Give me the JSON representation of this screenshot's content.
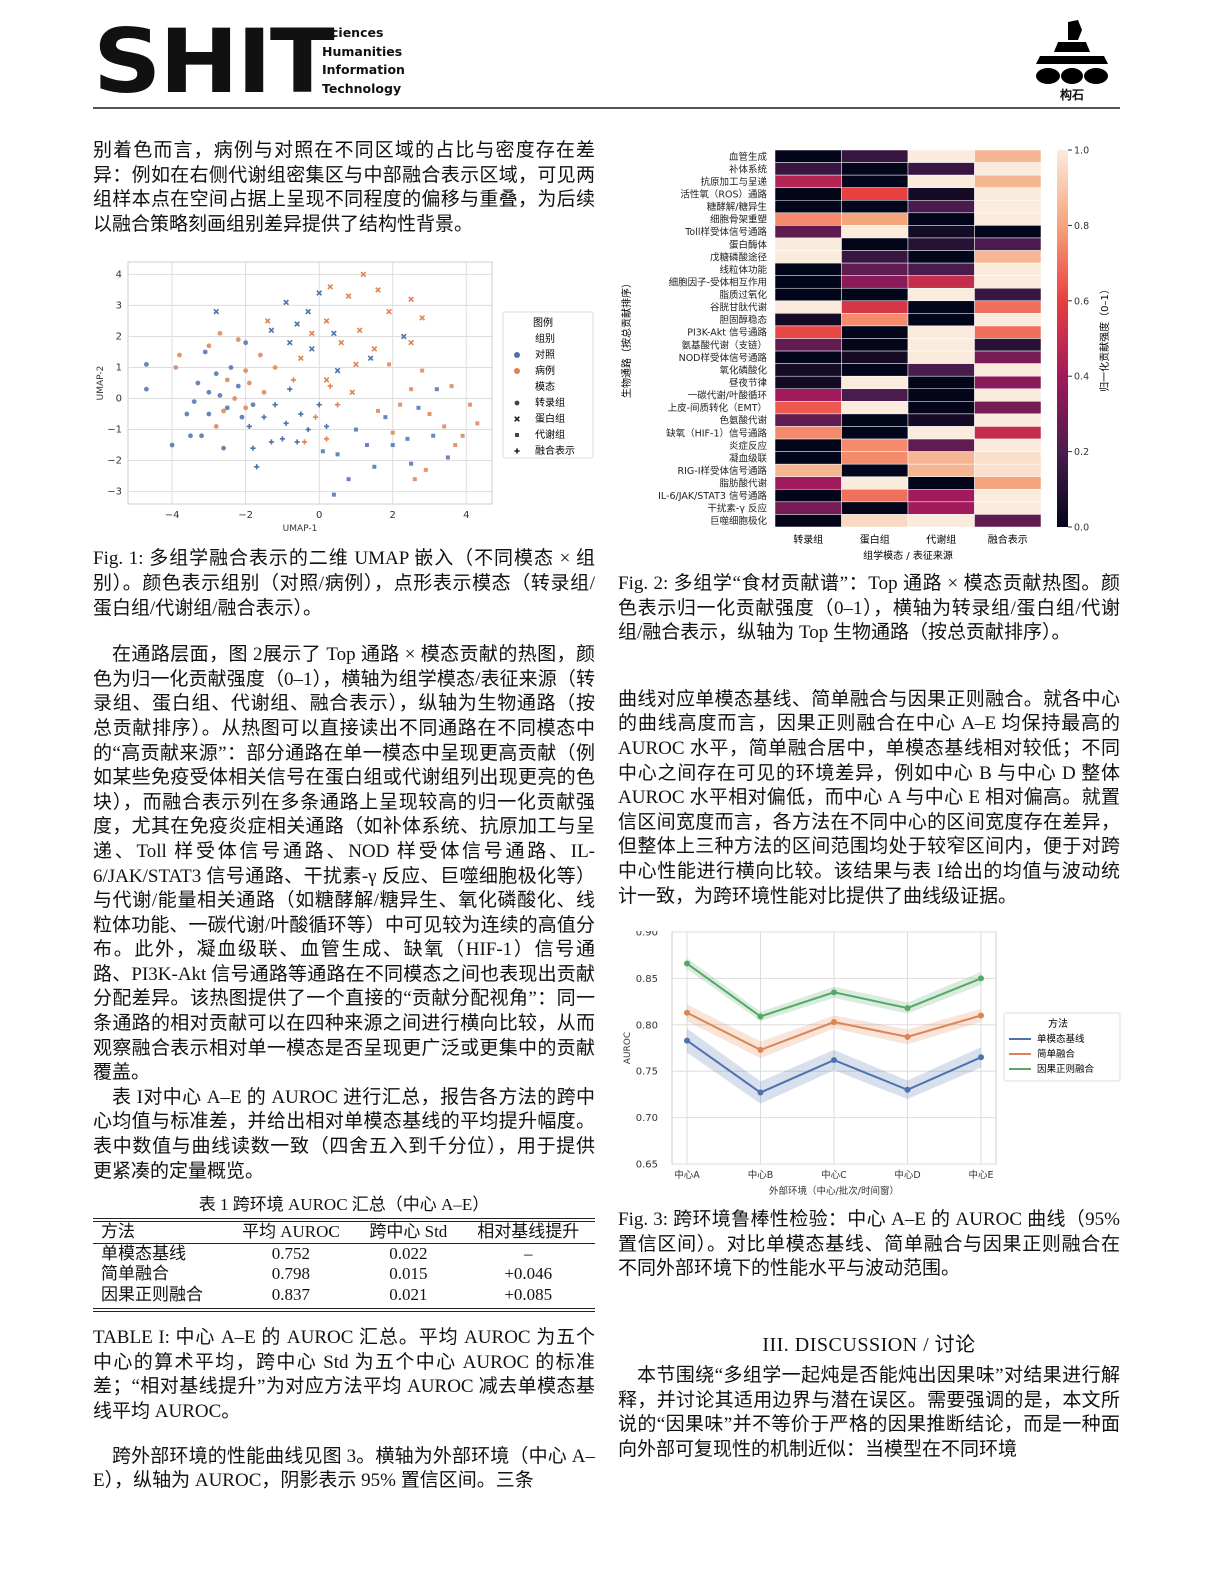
{
  "header": {
    "logo_text": "SHIT",
    "logo_words": [
      "Sciences",
      "Humanities",
      "Information",
      "Technology"
    ],
    "right_logo_caption": "构石"
  },
  "left": {
    "para1": "别着色而言，病例与对照在不同区域的占比与密度存在差异：例如在右侧代谢组密集区与中部融合表示区域，可见两组样本点在空间占据上呈现不同程度的偏移与重叠，为后续以融合策略刻画组别差异提供了结构性背景。",
    "fig1_caption": "Fig. 1: 多组学融合表示的二维 UMAP 嵌入（不同模态 × 组别）。颜色表示组别（对照/病例），点形表示模态（转录组/蛋白组/代谢组/融合表示）。",
    "para2": "在通路层面，图 2展示了 Top 通路 × 模态贡献的热图，颜色为归一化贡献强度（0–1），横轴为组学模态/表征来源（转录组、蛋白组、代谢组、融合表示），纵轴为生物通路（按总贡献排序）。从热图可以直接读出不同通路在不同模态中的“高贡献来源”：部分通路在单一模态中呈现更高贡献（例如某些免疫受体相关信号在蛋白组或代谢组列出现更亮的色块），而融合表示列在多条通路上呈现较高的归一化贡献强度，尤其在免疫炎症相关通路（如补体系统、抗原加工与呈递、Toll 样受体信号通路、NOD 样受体信号通路、IL-6/JAK/STAT3 信号通路、干扰素-γ 反应、巨噬细胞极化等）与代谢/能量相关通路（如糖酵解/糖异生、氧化磷酸化、线粒体功能、一碳代谢/叶酸循环等）中可见较为连续的高值分布。此外，凝血级联、血管生成、缺氧（HIF-1）信号通路、PI3K-Akt 信号通路等通路在不同模态之间也表现出贡献分配差异。该热图提供了一个直接的“贡献分配视角”：同一条通路的相对贡献可以在四种来源之间进行横向比较，从而观察融合表示相对单一模态是否呈现更广泛或更集中的贡献覆盖。",
    "para3": "表 I对中心 A–E 的 AUROC 进行汇总，报告各方法的跨中心均值与标准差，并给出相对单模态基线的平均提升幅度。表中数值与曲线读数一致（四舍五入到千分位），用于提供更紧凑的定量概览。",
    "table_caption": "TABLE I: 中心 A–E 的 AUROC 汇总。平均 AUROC 为五个中心的算术平均，跨中心 Std 为五个中心 AUROC 的标准差；“相对基线提升”为对应方法平均 AUROC 减去单模态基线平均 AUROC。",
    "para4": "跨外部环境的性能曲线见图 3。横轴为外部环境（中心 A–E），纵轴为 AUROC，阴影表示 95% 置信区间。三条"
  },
  "table": {
    "title": "表 1  跨环境 AUROC 汇总（中心 A–E）",
    "headers": [
      "方法",
      "平均 AUROC",
      "跨中心 Std",
      "相对基线提升"
    ],
    "rows": [
      [
        "单模态基线",
        "0.752",
        "0.022",
        "–"
      ],
      [
        "简单融合",
        "0.798",
        "0.015",
        "+0.046"
      ],
      [
        "因果正则融合",
        "0.837",
        "0.021",
        "+0.085"
      ]
    ],
    "bold_row": 2
  },
  "right": {
    "fig2_caption": "Fig. 2: 多组学“食材贡献谱”：Top 通路 × 模态贡献热图。颜色表示归一化贡献强度（0–1），横轴为转录组/蛋白组/代谢组/融合表示，纵轴为 Top 生物通路（按总贡献排序）。",
    "para1": "曲线对应单模态基线、简单融合与因果正则融合。就各中心的曲线高度而言，因果正则融合在中心 A–E 均保持最高的 AUROC 水平，简单融合居中，单模态基线相对较低；不同中心之间存在可见的环境差异，例如中心 B 与中心 D 整体 AUROC 水平相对偏低，而中心 A 与中心 E 相对偏高。就置信区间宽度而言，各方法在不同中心的区间宽度存在差异，但整体上三种方法的区间范围均处于较窄区间内，便于对跨中心性能进行横向比较。该结果与表 I给出的均值与波动统计一致，为跨环境性能对比提供了曲线级证据。",
    "fig3_caption": "Fig. 3: 跨环境鲁棒性检验：中心 A–E 的 AUROC 曲线（95% 置信区间）。对比单模态基线、简单融合与因果正则融合在不同外部环境下的性能水平与波动范围。",
    "section_heading": "III. DISCUSSION / 讨论",
    "para2": "本节围绕“多组学一起炖是否能炖出因果味”对结果进行解释，并讨论其适用边界与潜在误区。需要强调的是，本文所说的“因果味”并不等价于严格的因果推断结论，而是一种面向外部可复现性的机制近似：当模型在不同环境"
  },
  "chart_data": [
    {
      "type": "scatter",
      "xlabel": "UMAP-1",
      "ylabel": "UMAP-2",
      "xlim": [
        -5.2,
        4.7
      ],
      "ylim": [
        -3.4,
        4.4
      ],
      "xticks": [
        -4,
        -2,
        0,
        2,
        4
      ],
      "yticks": [
        -3,
        -2,
        -1,
        0,
        1,
        2,
        3,
        4
      ],
      "grid": true,
      "legend_placement": "right",
      "legend": {
        "title": "图例",
        "group_title": "组别",
        "groups": [
          "对照",
          "病例"
        ],
        "modality_title": "模态",
        "modalities": [
          "转录组",
          "蛋白组",
          "代谢组",
          "融合表示"
        ]
      },
      "colors": {
        "对照": "#4c72b0",
        "病例": "#dd8452"
      },
      "point_fields": [
        "x",
        "y",
        "group_index",
        "modality_index"
      ],
      "points": [
        [
          -4.7,
          1.1,
          0,
          0
        ],
        [
          -4.7,
          0.3,
          0,
          0
        ],
        [
          -4,
          -1.5,
          0,
          0
        ],
        [
          -3.5,
          -1.2,
          0,
          0
        ],
        [
          -3.2,
          -1.2,
          0,
          0
        ],
        [
          -2.6,
          -1.6,
          0,
          0
        ],
        [
          -3.3,
          0.5,
          0,
          0
        ],
        [
          -3,
          0.2,
          0,
          0
        ],
        [
          -2.8,
          0.8,
          0,
          0
        ],
        [
          -3.4,
          -0.1,
          0,
          0
        ],
        [
          -2.5,
          -0.3,
          0,
          0
        ],
        [
          -2.2,
          0.4,
          0,
          0
        ],
        [
          -3.1,
          1.5,
          0,
          0
        ],
        [
          -2,
          1.8,
          0,
          0
        ],
        [
          -3.6,
          -0.5,
          0,
          0
        ],
        [
          -2.7,
          0.1,
          0,
          0
        ],
        [
          -1.8,
          -0.2,
          0,
          0
        ],
        [
          -2.4,
          1.0,
          0,
          0
        ],
        [
          -3.0,
          -0.5,
          0,
          0
        ],
        [
          -2.1,
          -0.6,
          0,
          0
        ],
        [
          -3.8,
          1.4,
          1,
          0
        ],
        [
          -2.7,
          2.1,
          1,
          0
        ],
        [
          -3.0,
          1.7,
          1,
          0
        ],
        [
          -2.2,
          1.9,
          1,
          0
        ],
        [
          -2.5,
          0.6,
          1,
          0
        ],
        [
          -2,
          0.9,
          1,
          0
        ],
        [
          -1.6,
          1.4,
          1,
          0
        ],
        [
          -2.3,
          0,
          1,
          0
        ],
        [
          -1.9,
          0.5,
          1,
          0
        ],
        [
          -2.8,
          -0.9,
          1,
          0
        ],
        [
          -1.5,
          0.2,
          1,
          0
        ],
        [
          -2.6,
          -0.4,
          1,
          0
        ],
        [
          -3.9,
          1.0,
          1,
          0
        ],
        [
          -1.2,
          1.0,
          1,
          0
        ],
        [
          -2.0,
          -0.3,
          1,
          0
        ],
        [
          1.2,
          4,
          1,
          1
        ],
        [
          0.3,
          3.6,
          1,
          1
        ],
        [
          1.6,
          3.5,
          1,
          1
        ],
        [
          0.8,
          3.3,
          1,
          1
        ],
        [
          2.5,
          3.2,
          1,
          1
        ],
        [
          1.9,
          2.8,
          1,
          1
        ],
        [
          0.2,
          2.5,
          1,
          1
        ],
        [
          1.1,
          2.2,
          1,
          1
        ],
        [
          2.8,
          2.6,
          1,
          1
        ],
        [
          -0.2,
          2.1,
          1,
          1
        ],
        [
          0.6,
          1.8,
          1,
          1
        ],
        [
          1.5,
          1.6,
          1,
          1
        ],
        [
          -1.4,
          2.5,
          1,
          1
        ],
        [
          2.5,
          1.8,
          1,
          1
        ],
        [
          1.0,
          1.1,
          1,
          1
        ],
        [
          0.2,
          0.6,
          1,
          1
        ],
        [
          -0.5,
          1.3,
          1,
          1
        ],
        [
          0.9,
          0.2,
          1,
          1
        ],
        [
          -2.8,
          2.8,
          0,
          1
        ],
        [
          -0.9,
          3.1,
          0,
          1
        ],
        [
          -0.3,
          2.8,
          0,
          1
        ],
        [
          0.0,
          3.4,
          0,
          1
        ],
        [
          -0.6,
          2.4,
          0,
          1
        ],
        [
          0.4,
          2.1,
          0,
          1
        ],
        [
          -1.3,
          2.2,
          0,
          1
        ],
        [
          -0.2,
          1.6,
          0,
          1
        ],
        [
          2.3,
          2.0,
          0,
          1
        ],
        [
          1.4,
          1.3,
          0,
          1
        ],
        [
          0.5,
          0.9,
          0,
          1
        ],
        [
          -0.8,
          1.8,
          0,
          1
        ],
        [
          0.4,
          -3.1,
          0,
          2
        ],
        [
          0.8,
          -2.6,
          0,
          2
        ],
        [
          1.5,
          -2.2,
          0,
          2
        ],
        [
          2.0,
          -1.5,
          0,
          2
        ],
        [
          2.5,
          -2.1,
          0,
          2
        ],
        [
          3.5,
          -1.9,
          0,
          2
        ],
        [
          1.0,
          -1.0,
          0,
          2
        ],
        [
          1.8,
          -0.6,
          0,
          2
        ],
        [
          2.4,
          -1.3,
          0,
          2
        ],
        [
          3.1,
          -1.2,
          0,
          2
        ],
        [
          0.5,
          -1.8,
          0,
          2
        ],
        [
          1.3,
          -1.5,
          0,
          2
        ],
        [
          2.7,
          -0.3,
          0,
          2
        ],
        [
          3.2,
          0.3,
          0,
          2
        ],
        [
          0.1,
          -1.7,
          0,
          2
        ],
        [
          2.6,
          -2.6,
          1,
          2
        ],
        [
          2.9,
          -2.3,
          1,
          2
        ],
        [
          3.9,
          -1.2,
          1,
          2
        ],
        [
          4.3,
          -0.8,
          1,
          2
        ],
        [
          3.6,
          0.4,
          1,
          2
        ],
        [
          2.8,
          0.9,
          1,
          2
        ],
        [
          2.2,
          -0.2,
          1,
          2
        ],
        [
          3.0,
          -0.5,
          1,
          2
        ],
        [
          2.5,
          0.3,
          1,
          2
        ],
        [
          1.9,
          1.1,
          1,
          2
        ],
        [
          4.1,
          -0.2,
          1,
          2
        ],
        [
          3.4,
          -0.9,
          1,
          2
        ],
        [
          2.0,
          -1.1,
          1,
          2
        ],
        [
          3.7,
          -1.5,
          1,
          2
        ],
        [
          1.6,
          -0.4,
          1,
          2
        ],
        [
          -1.7,
          -2.2,
          0,
          3
        ],
        [
          -1.8,
          -1.6,
          0,
          3
        ],
        [
          -1.3,
          -1.4,
          0,
          3
        ],
        [
          -1.0,
          -1.3,
          0,
          3
        ],
        [
          -0.6,
          -1.4,
          0,
          3
        ],
        [
          -1.5,
          -0.6,
          0,
          3
        ],
        [
          -0.9,
          -0.8,
          0,
          3
        ],
        [
          -0.3,
          -1.0,
          0,
          3
        ],
        [
          -1.2,
          -0.2,
          0,
          3
        ],
        [
          -0.5,
          -0.5,
          0,
          3
        ],
        [
          0.2,
          -0.9,
          0,
          3
        ],
        [
          -0.8,
          0.3,
          0,
          3
        ],
        [
          -1.9,
          -0.9,
          0,
          3
        ],
        [
          0.0,
          -0.2,
          0,
          3
        ],
        [
          -0.4,
          -1.4,
          1,
          3
        ],
        [
          0.2,
          -1.3,
          1,
          3
        ],
        [
          -0.1,
          -0.6,
          1,
          3
        ],
        [
          0.5,
          -0.2,
          1,
          3
        ],
        [
          -0.7,
          0.6,
          1,
          3
        ],
        [
          0.3,
          0.4,
          1,
          3
        ]
      ]
    },
    {
      "type": "heatmap",
      "xlabel": "组学模态 / 表征来源",
      "ylabel": "生物通路（按总贡献排序）",
      "colorbar_label": "归一化贡献强度（0–1）",
      "columns": [
        "转录组",
        "蛋白组",
        "代谢组",
        "融合表示"
      ],
      "colorbar_ticks": [
        "0.0",
        "0.2",
        "0.4",
        "0.6",
        "0.8",
        "1.0"
      ],
      "vlim": [
        0,
        1
      ],
      "colormap": "rocket",
      "rows": [
        "血管生成",
        "补体系统",
        "抗原加工与呈递",
        "活性氧（ROS）通路",
        "糖酵解/糖异生",
        "细胞骨架重塑",
        "Toll样受体信号通路",
        "蛋白酶体",
        "戊糖磷酸途径",
        "线粒体功能",
        "细胞因子-受体相互作用",
        "脂质过氧化",
        "谷胱甘肽代谢",
        "胆固醇稳态",
        "PI3K-Akt 信号通路",
        "氨基酸代谢（支链）",
        "NOD样受体信号通路",
        "氧化磷酸化",
        "昼夜节律",
        "一碳代谢/叶酸循环",
        "上皮-间质转化（EMT）",
        "色氨酸代谢",
        "缺氧（HIF-1）信号通路",
        "炎症反应",
        "凝血级联",
        "RIG-I样受体信号通路",
        "脂肪酸代谢",
        "IL-6/JAK/STAT3 信号通路",
        "干扰素-γ 反应",
        "巨噬细胞极化"
      ],
      "values": [
        [
          0.0,
          0.15,
          1.0,
          0.85
        ],
        [
          0.15,
          0.0,
          0.15,
          1.0
        ],
        [
          0.45,
          0.0,
          1.0,
          0.85
        ],
        [
          0.0,
          0.6,
          0.05,
          1.0
        ],
        [
          0.0,
          0.0,
          0.2,
          1.0
        ],
        [
          0.75,
          0.8,
          0.0,
          1.0
        ],
        [
          0.25,
          1.0,
          0.05,
          0.0
        ],
        [
          1.0,
          0.0,
          0.1,
          0.2
        ],
        [
          1.0,
          0.15,
          0.0,
          0.85
        ],
        [
          0.0,
          0.25,
          0.2,
          1.0
        ],
        [
          0.0,
          0.35,
          0.5,
          1.0
        ],
        [
          0.0,
          0.0,
          1.0,
          0.15
        ],
        [
          1.0,
          0.55,
          0.0,
          0.7
        ],
        [
          0.05,
          0.75,
          0.0,
          1.0
        ],
        [
          0.62,
          0.0,
          1.0,
          0.7
        ],
        [
          0.25,
          0.0,
          1.0,
          0.1
        ],
        [
          0.0,
          0.05,
          1.0,
          0.3
        ],
        [
          0.05,
          0.0,
          0.2,
          1.0
        ],
        [
          0.05,
          1.0,
          0.0,
          0.35
        ],
        [
          0.4,
          0.2,
          0.0,
          1.0
        ],
        [
          0.65,
          1.0,
          0.0,
          0.3
        ],
        [
          0.25,
          0.0,
          0.05,
          1.0
        ],
        [
          0.75,
          0.0,
          1.0,
          0.5
        ],
        [
          0.0,
          0.75,
          0.25,
          1.0
        ],
        [
          0.0,
          0.75,
          0.85,
          0.97
        ],
        [
          0.85,
          0.0,
          0.85,
          0.97
        ],
        [
          0.4,
          1.0,
          0.0,
          0.8
        ],
        [
          0.0,
          0.7,
          0.4,
          1.0
        ],
        [
          0.3,
          0.0,
          0.4,
          1.0
        ],
        [
          0.0,
          0.95,
          1.0,
          0.25
        ]
      ]
    },
    {
      "type": "line",
      "xlabel": "外部环境（中心/批次/时间窗）",
      "ylabel": "AUROC",
      "categories": [
        "中心A",
        "中心B",
        "中心C",
        "中心D",
        "中心E"
      ],
      "ylim": [
        0.65,
        0.9
      ],
      "yticks": [
        "0.65",
        "0.70",
        "0.75",
        "0.80",
        "0.85",
        "0.90"
      ],
      "grid": true,
      "legend_placement": "right",
      "legend_title": "方法",
      "ci": "95%",
      "series": [
        {
          "name": "单模态基线",
          "color": "#4c72b0",
          "values": [
            0.783,
            0.727,
            0.762,
            0.73,
            0.765
          ],
          "ci_halfwidth": [
            0.013,
            0.012,
            0.011,
            0.01,
            0.011
          ]
        },
        {
          "name": "简单融合",
          "color": "#dd8452",
          "values": [
            0.813,
            0.773,
            0.803,
            0.787,
            0.81
          ],
          "ci_halfwidth": [
            0.009,
            0.009,
            0.007,
            0.008,
            0.007
          ]
        },
        {
          "name": "因果正则融合",
          "color": "#55a868",
          "values": [
            0.866,
            0.809,
            0.835,
            0.818,
            0.85
          ],
          "ci_halfwidth": [
            0.006,
            0.005,
            0.006,
            0.006,
            0.007
          ]
        }
      ]
    }
  ]
}
